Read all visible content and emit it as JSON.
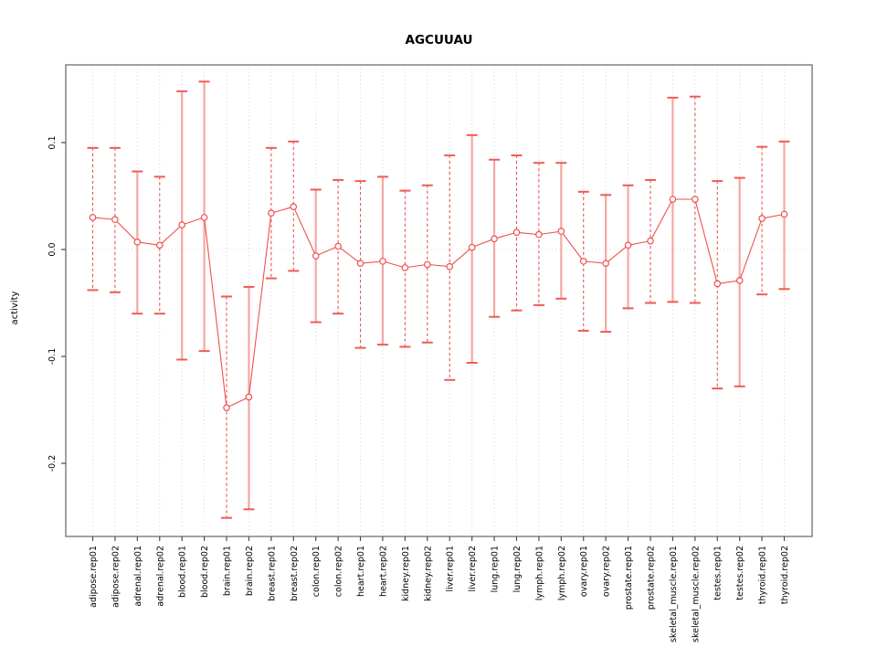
{
  "chart": {
    "title": "AGCUUAU",
    "ylabel": "activity"
  },
  "chart_data": {
    "type": "line",
    "subtype": "points-with-error-bars",
    "title": "AGCUUAU",
    "xlabel": "",
    "ylabel": "activity",
    "legend": "none",
    "grid": "vertical dotted gridline per category; dotted horizontal line at y=0",
    "ylim": [
      -0.27,
      0.17
    ],
    "yticks": [
      0.1,
      0.0,
      -0.1,
      -0.2
    ],
    "ytick_labels": [
      "0.1",
      "0.0",
      "-0.1",
      "-0.2"
    ],
    "categories": [
      "adipose.rep01",
      "adipose.rep02",
      "adrenal.rep01",
      "adrenal.rep02",
      "blood.rep01",
      "blood.rep02",
      "brain.rep01",
      "brain.rep02",
      "breast.rep01",
      "breast.rep02",
      "colon.rep01",
      "colon.rep02",
      "heart.rep01",
      "heart.rep02",
      "kidney.rep01",
      "kidney.rep02",
      "liver.rep01",
      "liver.rep02",
      "lung.rep01",
      "lung.rep02",
      "lymph.rep01",
      "lymph.rep02",
      "ovary.rep01",
      "ovary.rep02",
      "prostate.rep01",
      "prostate.rep02",
      "skeletal_muscle.rep01",
      "skeletal_muscle.rep02",
      "testes.rep01",
      "testes.rep02",
      "thyroid.rep01",
      "thyroid.rep02"
    ],
    "series": [
      {
        "name": "activity",
        "values": [
          0.03,
          0.028,
          0.007,
          0.004,
          0.023,
          0.03,
          -0.148,
          -0.138,
          0.034,
          0.04,
          -0.006,
          0.003,
          -0.013,
          -0.011,
          -0.017,
          -0.014,
          -0.016,
          0.002,
          0.01,
          0.016,
          0.014,
          0.017,
          -0.011,
          -0.013,
          0.004,
          0.008,
          0.047,
          0.047,
          -0.032,
          -0.029,
          0.029,
          0.033
        ],
        "lower": [
          -0.038,
          -0.04,
          -0.06,
          -0.06,
          -0.103,
          -0.095,
          -0.251,
          -0.243,
          -0.027,
          -0.02,
          -0.068,
          -0.06,
          -0.092,
          -0.089,
          -0.091,
          -0.087,
          -0.122,
          -0.106,
          -0.063,
          -0.057,
          -0.052,
          -0.046,
          -0.076,
          -0.077,
          -0.055,
          -0.05,
          -0.049,
          -0.05,
          -0.13,
          -0.128,
          -0.042,
          -0.037
        ],
        "upper": [
          0.095,
          0.095,
          0.073,
          0.068,
          0.148,
          0.157,
          -0.044,
          -0.035,
          0.095,
          0.101,
          0.056,
          0.065,
          0.064,
          0.068,
          0.055,
          0.06,
          0.088,
          0.107,
          0.084,
          0.088,
          0.081,
          0.081,
          0.054,
          0.051,
          0.06,
          0.065,
          0.142,
          0.143,
          0.064,
          0.067,
          0.096,
          0.101
        ]
      }
    ],
    "error_bar_styles": [
      "dashed",
      "dashed",
      "solid",
      "dashed",
      "solid",
      "solid",
      "dashed",
      "solid",
      "dashed",
      "dashed",
      "solid",
      "dashed",
      "dashed",
      "solid",
      "dashed",
      "dashed",
      "dashed",
      "solid",
      "solid",
      "dashed",
      "dashed",
      "solid",
      "dashed",
      "solid",
      "solid",
      "dashed",
      "solid",
      "dashed",
      "dashed",
      "solid",
      "dashed",
      "solid"
    ],
    "colors": {
      "point": "#ee514e",
      "connector": "#ee514e",
      "error_dashed": "#ee514e",
      "error_solid": "#f6a7a2",
      "cap": "#f05a55",
      "grid": "#d6d6d6",
      "zero_line": "#dcdcdc",
      "box": "#8a8a8a",
      "tick": "#4d4d4d",
      "text": "#000000"
    }
  }
}
